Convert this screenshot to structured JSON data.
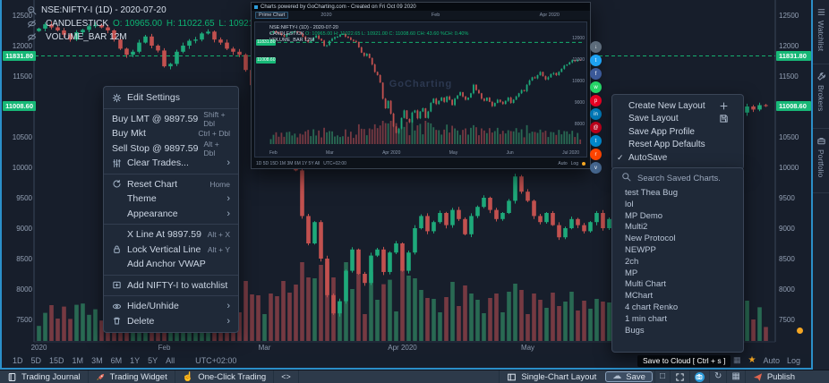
{
  "colors": {
    "accent_blue": "#2b8fc9",
    "green_up": "#1ea97a",
    "red_down": "#c2514f",
    "tag_green": "#17b877",
    "orange": "#f5a623"
  },
  "legend": {
    "symbol": "NSE:NIFTY-I (1D) - 2020-07-20",
    "study": "CANDLESTICK",
    "fields": [
      {
        "label": "O:",
        "value": "10965.00"
      },
      {
        "label": "H:",
        "value": "11022.65"
      },
      {
        "label": "L:",
        "value": "10921.00"
      },
      {
        "label": "C:",
        "value": "11008.60"
      }
    ],
    "volume": "VOLUME_BAR 12M"
  },
  "price_axis": {
    "ticks": [
      12500,
      12000,
      11500,
      10500,
      10000,
      9500,
      9000,
      8500,
      8000,
      7500
    ],
    "tags": [
      {
        "text": "11831.80",
        "price": 11831.8
      },
      {
        "text": "11008.60",
        "price": 11008.6
      }
    ]
  },
  "time_axis": {
    "labels": [
      {
        "text": "2020",
        "index": 0
      },
      {
        "text": "Feb",
        "index": 20
      },
      {
        "text": "Mar",
        "index": 36
      },
      {
        "text": "Apr 2020",
        "index": 58
      },
      {
        "text": "May",
        "index": 78
      },
      {
        "text": "Jun",
        "index": 96
      }
    ]
  },
  "context_menu": {
    "items": [
      {
        "label": "Edit Settings",
        "icon": "gear-icon",
        "sep_after": true
      },
      {
        "label": "Buy LMT @ 9897.59",
        "shortcut": "Shift + Dbl"
      },
      {
        "label": "Buy Mkt",
        "shortcut": "Ctrl + Dbl"
      },
      {
        "label": "Sell Stop @ 9897.59",
        "shortcut": "Alt + Dbl"
      },
      {
        "label": "Clear Trades...",
        "icon": "sliders-icon",
        "arrow": true,
        "sep_after": true
      },
      {
        "label": "Reset Chart",
        "icon": "reset-icon",
        "shortcut": "Home"
      },
      {
        "label": "Theme",
        "indent": true,
        "arrow": true
      },
      {
        "label": "Appearance",
        "indent": true,
        "arrow": true,
        "sep_after": true
      },
      {
        "label": "X Line At 9897.59",
        "indent": true,
        "shortcut": "Alt + X"
      },
      {
        "label": "Lock Vertical Line",
        "icon": "lock-icon",
        "shortcut": "Alt + Y"
      },
      {
        "label": "Add Anchor VWAP",
        "indent": true,
        "sep_after": true
      },
      {
        "label": "Add NIFTY-I to watchlist",
        "icon": "watchlist-add-icon",
        "sep_after": true
      },
      {
        "label": "Hide/Unhide",
        "icon": "eye-icon",
        "arrow": true
      },
      {
        "label": "Delete",
        "icon": "trash-icon",
        "arrow": true
      }
    ]
  },
  "layout_menu": {
    "items": [
      {
        "label": "Create New Layout",
        "right_icon": "plus-icon"
      },
      {
        "label": "Save Layout",
        "right_icon": "save-icon"
      },
      {
        "label": "Save App Profile"
      },
      {
        "label": "Reset App Defaults"
      },
      {
        "label": "AutoSave",
        "checked": true
      }
    ]
  },
  "saved_charts": {
    "search_placeholder": "Search Saved Charts.",
    "items": [
      "test Thea Bug",
      "lol",
      "MP Demo",
      "Multi2",
      "New Protocol",
      "NEWPP",
      "2ch",
      "MP",
      "Multi Chart",
      "MChart",
      "4 chart Renko",
      "1 min chart",
      "Bugs"
    ]
  },
  "share_buttons": [
    {
      "name": "download-icon",
      "color": "#5c6b7a",
      "glyph": "↓"
    },
    {
      "name": "twitter-icon",
      "color": "#1da1f2",
      "glyph": "t"
    },
    {
      "name": "facebook-icon",
      "color": "#3b5998",
      "glyph": "f"
    },
    {
      "name": "whatsapp-icon",
      "color": "#25d366",
      "glyph": "w"
    },
    {
      "name": "pinterest-icon",
      "color": "#e60023",
      "glyph": "p"
    },
    {
      "name": "linkedin-icon",
      "color": "#0077b5",
      "glyph": "in"
    },
    {
      "name": "email-icon",
      "color": "#bb001b",
      "glyph": "@"
    },
    {
      "name": "telegram-icon",
      "color": "#0088cc",
      "glyph": "t"
    },
    {
      "name": "reddit-icon",
      "color": "#ff4500",
      "glyph": "r"
    },
    {
      "name": "vk-icon",
      "color": "#45668e",
      "glyph": "v"
    }
  ],
  "popup": {
    "window_title": "Charts powered by GoCharting.com - Created on Fri Oct 09 2020",
    "tab": "Prime Chart",
    "nav_labels": [
      "2020",
      "Feb",
      "Apr 2020"
    ],
    "legend_line1": "NSE:NIFTY-I (1D) - 2020-07-20",
    "legend_study": "CANDLESTICK",
    "legend_ohlc": "O: 10965.00  H: 11022.65  L: 10921.00  C: 11008.60  CH: 43.60  %CH: 0.40%",
    "legend_line3": "VOLUME_BAR 12M",
    "watermark": "GoCharting",
    "months": [
      "Feb",
      "Mar",
      "Apr 2020",
      "May",
      "Jun",
      "Jul 2020"
    ],
    "price_ticks": [
      12000,
      11000,
      10000,
      9000,
      8000
    ],
    "tags": [
      {
        "text": "11831.80",
        "price": 11831.8
      },
      {
        "text": "11008.60",
        "price": 11008.6
      }
    ],
    "timeframes": "1D  5D  15D  1M  3M  6M  1Y  5Y  All",
    "timezone": "UTC+02:00",
    "auto_label": "Auto",
    "log_label": "Log"
  },
  "timeframe_bar": {
    "ranges": [
      "1D",
      "5D",
      "15D",
      "1M",
      "3M",
      "6M",
      "1Y",
      "5Y",
      "All"
    ],
    "timezone": "UTC+02:00",
    "auto_label": "Auto",
    "log_label": "Log"
  },
  "bottom_bar": {
    "left": [
      {
        "label": "Trading Journal",
        "icon": "journal-icon"
      },
      {
        "label": "Trading Widget",
        "icon": "rocket-icon"
      },
      {
        "label": "One-Click Trading",
        "icon": "pointer-icon"
      },
      {
        "label": "<>",
        "icon": "code-icon"
      }
    ],
    "right": {
      "layout_label": "Single-Chart Layout",
      "save_label": "Save",
      "publish_label": "Publish"
    }
  },
  "tooltip": "Save to Cloud [ Ctrl + s ]",
  "sidebar": {
    "tabs": [
      {
        "label": "Watchlist",
        "icon": "list-icon"
      },
      {
        "label": "Brokers",
        "icon": "wrench-icon"
      },
      {
        "label": "Portfolio",
        "icon": "briefcase-icon"
      }
    ]
  },
  "chart_data": {
    "type": "candlestick",
    "symbol": "NSE:NIFTY-I",
    "interval": "1D",
    "title": "NSE:NIFTY-I (1D) - 2020-07-20",
    "x_labels": [
      "2020",
      "Feb",
      "Mar",
      "Apr 2020",
      "May",
      "Jun"
    ],
    "y_ticks": [
      12500,
      12000,
      11500,
      10500,
      10000,
      9500,
      9000,
      8500,
      8000,
      7500
    ],
    "y_range": [
      7300,
      12750
    ],
    "level_line": 11831.8,
    "last_price": 11008.6,
    "last_ohlc": {
      "o": 10965.0,
      "h": 11022.65,
      "l": 10921.0,
      "c": 11008.6
    },
    "closes": [
      12280,
      12350,
      12300,
      12250,
      12180,
      12100,
      12220,
      12260,
      12320,
      12340,
      12300,
      12250,
      12100,
      11950,
      11850,
      11900,
      12050,
      12150,
      12000,
      11920,
      11660,
      11700,
      11900,
      12000,
      12080,
      12100,
      12200,
      12230,
      12100,
      12050,
      11950,
      11900,
      11850,
      11600,
      11350,
      11200,
      11300,
      11100,
      10800,
      10450,
      10300,
      9950,
      9200,
      8750,
      9100,
      8500,
      7900,
      7600,
      7800,
      8300,
      8650,
      8250,
      8100,
      8550,
      8650,
      8280,
      8600,
      8750,
      8300,
      8600,
      9000,
      9200,
      8950,
      9100,
      9250,
      9050,
      9300,
      9150,
      8900,
      9200,
      9350,
      9500,
      9300,
      9150,
      9250,
      9450,
      9850,
      9600,
      9450,
      9200,
      9100,
      9250,
      9050,
      8850,
      9000,
      9150,
      9050,
      8950,
      9100,
      9250,
      9000,
      9150,
      9300,
      9450,
      9600,
      9550,
      9850,
      10050,
      10200,
      10150,
      10300,
      10450,
      10250,
      10100,
      10200,
      10350,
      10400,
      10300,
      10450,
      10600,
      10750,
      10800,
      10900,
      11000,
      10950,
      11022,
      11008.6
    ]
  }
}
